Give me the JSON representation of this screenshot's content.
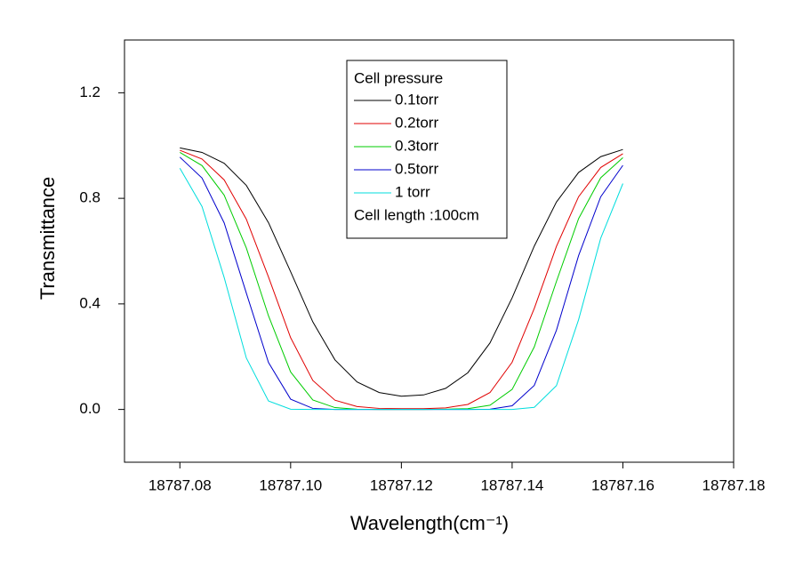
{
  "chart_data": {
    "type": "line",
    "xlabel": "Wavelength(cm⁻¹)",
    "ylabel": "Transmittance",
    "legend_title": "Cell pressure",
    "annotation": "Cell length :100cm",
    "x": [
      18787.08,
      18787.084,
      18787.088,
      18787.092,
      18787.096,
      18787.1,
      18787.104,
      18787.108,
      18787.112,
      18787.116,
      18787.12,
      18787.124,
      18787.128,
      18787.132,
      18787.136,
      18787.14,
      18787.144,
      18787.148,
      18787.152,
      18787.156,
      18787.16
    ],
    "series": [
      {
        "name": "0.1torr",
        "color": "#000000",
        "values": [
          0.991,
          0.974,
          0.933,
          0.849,
          0.708,
          0.522,
          0.332,
          0.188,
          0.104,
          0.064,
          0.05,
          0.055,
          0.08,
          0.139,
          0.252,
          0.423,
          0.619,
          0.786,
          0.898,
          0.958,
          0.985
        ]
      },
      {
        "name": "0.2torr",
        "color": "#e00000",
        "values": [
          0.982,
          0.949,
          0.87,
          0.721,
          0.502,
          0.272,
          0.11,
          0.035,
          0.011,
          0.004,
          0.003,
          0.003,
          0.006,
          0.019,
          0.064,
          0.179,
          0.383,
          0.618,
          0.806,
          0.917,
          0.969
        ]
      },
      {
        "name": "0.3torr",
        "color": "#00cc00",
        "values": [
          0.974,
          0.924,
          0.812,
          0.612,
          0.355,
          0.142,
          0.036,
          0.007,
          0.001,
          0,
          0,
          0,
          0.001,
          0.003,
          0.016,
          0.076,
          0.237,
          0.485,
          0.723,
          0.878,
          0.954
        ]
      },
      {
        "name": "0.5torr",
        "color": "#0000cc",
        "values": [
          0.956,
          0.877,
          0.707,
          0.441,
          0.178,
          0.039,
          0.004,
          0,
          0,
          0,
          0,
          0,
          0,
          0,
          0.001,
          0.014,
          0.091,
          0.3,
          0.583,
          0.806,
          0.925
        ]
      },
      {
        "name": "1 torr",
        "color": "#00dddd",
        "values": [
          0.914,
          0.769,
          0.5,
          0.195,
          0.032,
          0.001,
          0,
          0,
          0,
          0,
          0,
          0,
          0,
          0,
          0,
          0,
          0.008,
          0.09,
          0.34,
          0.649,
          0.856
        ]
      }
    ],
    "xlim": [
      18787.07,
      18787.18
    ],
    "xticks": [
      18787.08,
      {
        "value": 18787.1,
        "label": "18787.10"
      },
      18787.12,
      18787.14,
      18787.16,
      18787.18
    ],
    "ylim": [
      -0.2,
      1.4
    ],
    "yticks": [
      {
        "value": 0,
        "label": "0.0"
      },
      0.4,
      0.8,
      1.2
    ],
    "grid": false
  }
}
